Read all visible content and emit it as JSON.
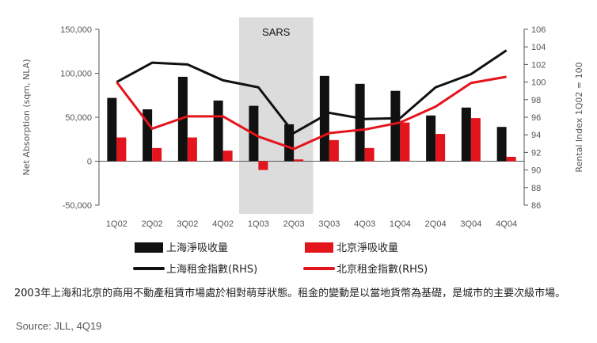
{
  "chart_data": {
    "type": "bar",
    "categories": [
      "1Q02",
      "2Q02",
      "3Q02",
      "4Q02",
      "1Q03",
      "2Q03",
      "3Q03",
      "4Q03",
      "1Q04",
      "2Q04",
      "3Q04",
      "4Q04"
    ],
    "series": [
      {
        "name": "上海淨吸收量",
        "type": "bar",
        "axis": "left",
        "color": "#111111",
        "values": [
          72000,
          59000,
          96000,
          69000,
          63000,
          42000,
          97000,
          88000,
          80000,
          52000,
          61000,
          39000
        ]
      },
      {
        "name": "北京淨吸收量",
        "type": "bar",
        "axis": "left",
        "color": "#e3141b",
        "values": [
          27000,
          15000,
          27000,
          12000,
          -10000,
          2000,
          24000,
          15000,
          44000,
          31000,
          49000,
          5000
        ]
      },
      {
        "name": "上海租金指數(RHS)",
        "type": "line",
        "axis": "right",
        "color": "#111111",
        "values": [
          100,
          102.2,
          102.0,
          100.2,
          99.4,
          94.2,
          96.5,
          95.8,
          95.9,
          99.4,
          100.9,
          103.6
        ]
      },
      {
        "name": "北京租金指數(RHS)",
        "type": "line",
        "axis": "right",
        "color": "#e3141b",
        "values": [
          100,
          94.7,
          96.1,
          96.1,
          93.8,
          92.4,
          94.2,
          94.6,
          95.4,
          97.2,
          99.9,
          100.6
        ]
      }
    ],
    "ylabel": "Net Absorption (sqm, NLA)",
    "ylim": [
      -50000,
      150000
    ],
    "yticks": [
      "-50,000",
      "0",
      "50,000",
      "100,000",
      "150,000"
    ],
    "y2label": "Rental Index 1Q02 = 100",
    "y2lim": [
      86,
      106
    ],
    "y2ticks": [
      "86",
      "88",
      "90",
      "92",
      "94",
      "96",
      "98",
      "100",
      "102",
      "104",
      "106"
    ],
    "shaded_period": {
      "label": "SARS",
      "from": "1Q03",
      "to": "2Q03"
    },
    "grid": false,
    "legend_position": "bottom"
  },
  "caption": "2003年上海和北京的商用不動產租賃市場處於相對萌芽狀態。租金的變動是以當地貨幣為基礎，是城市的主要次級市場。",
  "source": "Source: JLL, 4Q19"
}
